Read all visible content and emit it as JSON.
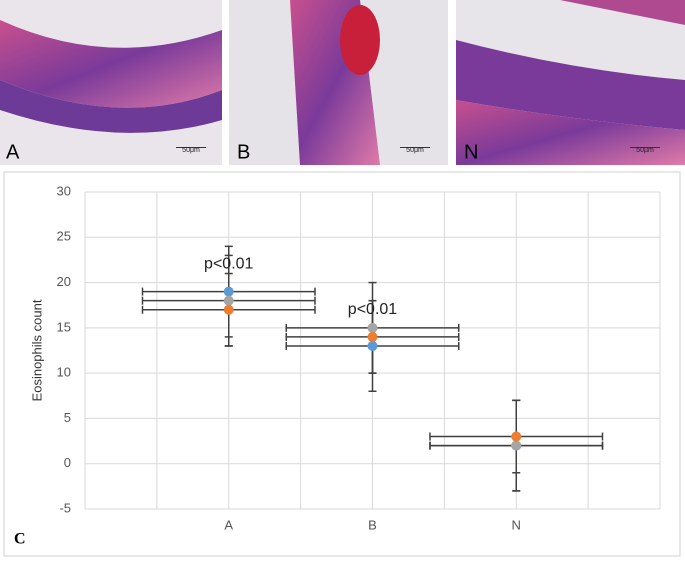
{
  "panels": [
    {
      "label": "A",
      "scale": "50μm"
    },
    {
      "label": "B",
      "scale": "50μm"
    },
    {
      "label": "N",
      "scale": "50μm"
    }
  ],
  "chart_data": {
    "type": "scatter",
    "panel_label": "C",
    "y_label": "Eosinophils count",
    "xlim": [
      0,
      4
    ],
    "xticks": [
      0,
      0.5,
      1,
      1.5,
      2,
      2.5,
      3,
      3.5,
      4
    ],
    "xtick_labels": [
      {
        "value": 1,
        "label": "A"
      },
      {
        "value": 2,
        "label": "B"
      },
      {
        "value": 3,
        "label": "N"
      }
    ],
    "ylim": [
      -5,
      30
    ],
    "yticks": [
      -5,
      0,
      5,
      10,
      15,
      20,
      25,
      30
    ],
    "grid": true,
    "series": [
      {
        "color": "#5b9bd5",
        "x": [
          1,
          2,
          3
        ],
        "values": [
          19,
          13,
          2
        ],
        "yerr": [
          5,
          5,
          5
        ],
        "xerr": [
          0.6,
          0.6,
          0.6
        ]
      },
      {
        "color": "#a5a5a5",
        "x": [
          1,
          2,
          3
        ],
        "values": [
          18,
          15,
          2
        ],
        "yerr": [
          5,
          5,
          5
        ],
        "xerr": [
          0.6,
          0.6,
          0.6
        ]
      },
      {
        "color": "#ed7d31",
        "x": [
          1,
          2,
          3
        ],
        "values": [
          17,
          14,
          3
        ],
        "yerr": [
          4,
          4,
          4
        ],
        "xerr": [
          0.6,
          0.6,
          0.6
        ]
      }
    ],
    "annotations": [
      {
        "text": "p<0.01",
        "x": 1,
        "y": 22
      },
      {
        "text": "p<0.01",
        "x": 2,
        "y": 17
      }
    ]
  }
}
